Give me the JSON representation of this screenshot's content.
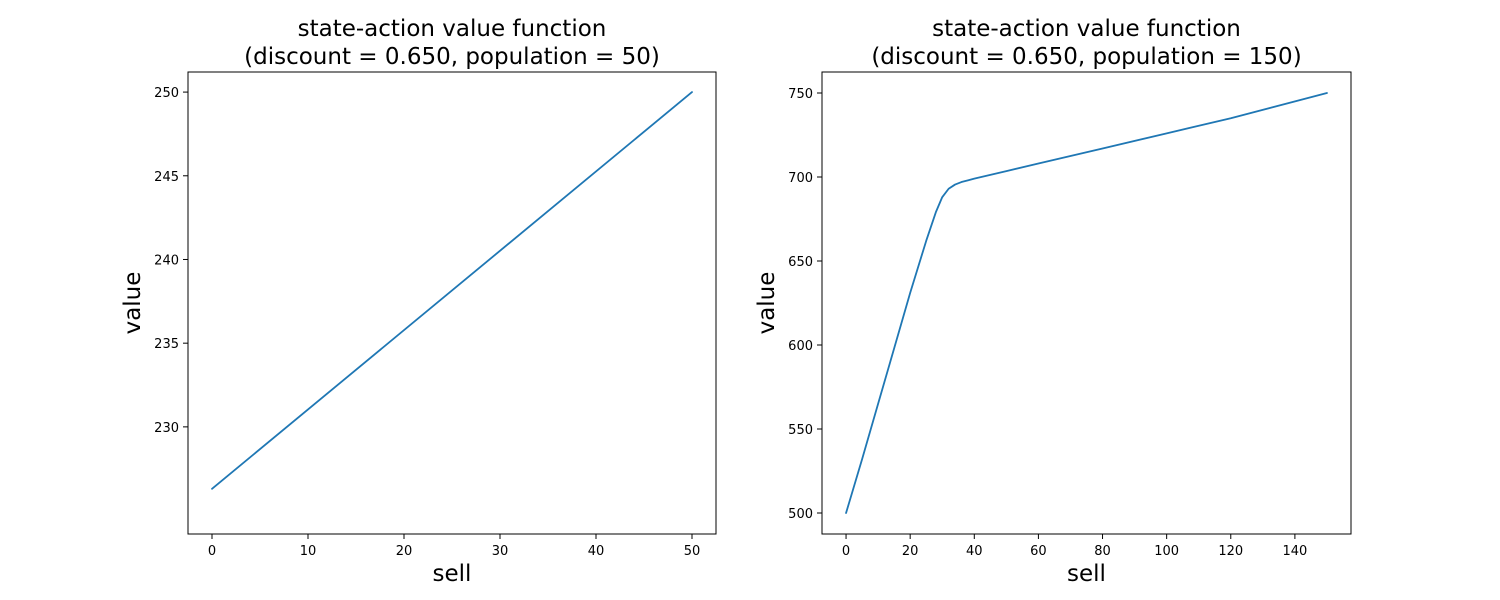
{
  "chart_data": [
    {
      "type": "line",
      "title": "state-action value function\n(discount = 0.650, population = 50)",
      "xlabel": "sell",
      "ylabel": "value",
      "xlim": [
        -2.5,
        52.5
      ],
      "ylim": [
        223.6,
        251.2
      ],
      "xticks": [
        0,
        10,
        20,
        30,
        40,
        50
      ],
      "yticks": [
        230,
        235,
        240,
        245,
        250
      ],
      "grid": false,
      "series": [
        {
          "color": "#1f77b4",
          "x": [
            0,
            50
          ],
          "y": [
            226.3,
            250.0
          ]
        }
      ]
    },
    {
      "type": "line",
      "title": "state-action value function\n(discount = 0.650, population = 150)",
      "xlabel": "sell",
      "ylabel": "value",
      "xlim": [
        -7.5,
        157.5
      ],
      "ylim": [
        487.5,
        762.5
      ],
      "xticks": [
        0,
        20,
        40,
        60,
        80,
        100,
        120,
        140
      ],
      "yticks": [
        500,
        550,
        600,
        650,
        700,
        750
      ],
      "grid": false,
      "series": [
        {
          "color": "#1f77b4",
          "x": [
            0,
            5,
            10,
            15,
            20,
            25,
            28,
            30,
            32,
            34,
            36,
            38,
            40,
            50,
            60,
            80,
            100,
            120,
            150
          ],
          "y": [
            500,
            532,
            565,
            598,
            631,
            662,
            679,
            688,
            693,
            695.5,
            697,
            698,
            699,
            703.5,
            708,
            717,
            726,
            735,
            750
          ]
        }
      ]
    }
  ]
}
